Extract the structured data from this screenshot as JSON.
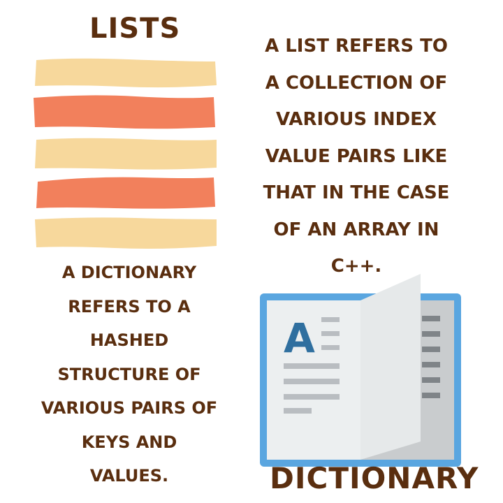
{
  "lists_section": {
    "title": "LISTS",
    "description_lines": [
      "A LIST REFERS TO",
      "A COLLECTION OF",
      "VARIOUS INDEX",
      "VALUE PAIRS LIKE",
      "THAT IN THE CASE",
      "OF AN ARRAY IN",
      "C++."
    ],
    "stripe_colors": [
      "#f7d89c",
      "#f2805c",
      "#f7d89c",
      "#f2805c",
      "#f7d89c"
    ]
  },
  "dictionary_section": {
    "title": "DICTIONARY",
    "description_lines": [
      "A DICTIONARY",
      "REFERS TO A",
      "HASHED",
      "STRUCTURE OF",
      "VARIOUS PAIRS OF",
      "KEYS AND",
      "VALUES."
    ],
    "icon": "dictionary-book-icon",
    "icon_letter": "A"
  },
  "colors": {
    "text": "#5a2e0f",
    "stripe_light": "#f7d89c",
    "stripe_dark": "#f2805c",
    "book_frame": "#5aa6e0",
    "book_letter": "#2f6f9f"
  }
}
